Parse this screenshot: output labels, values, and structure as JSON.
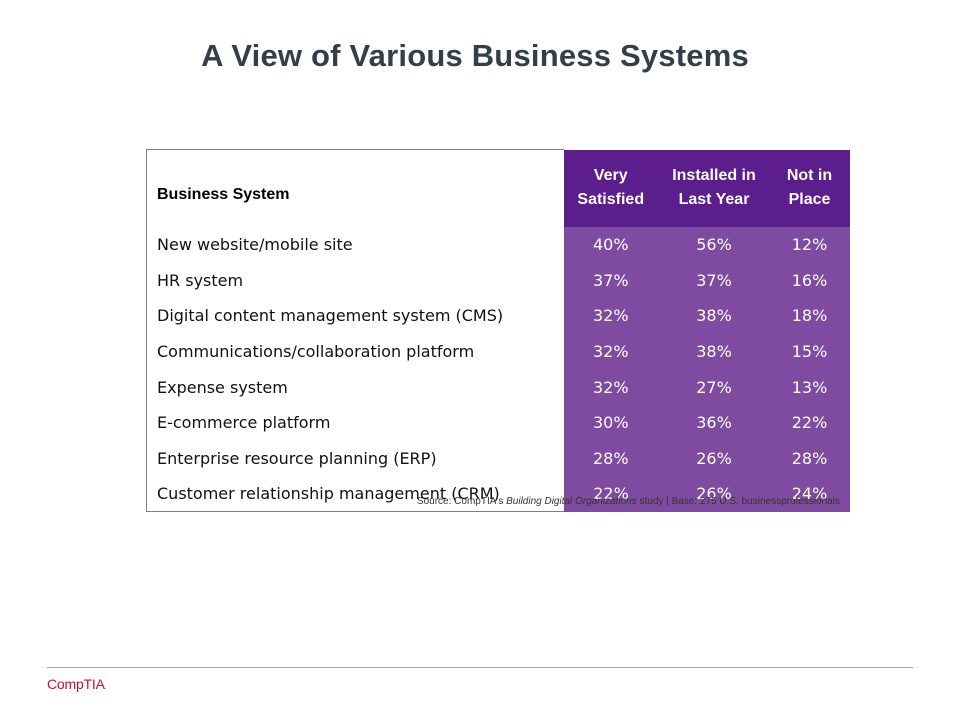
{
  "title": "A View of Various Business Systems",
  "table": {
    "headers": {
      "name": "Business System",
      "col1": "Very Satisfied",
      "col2": "Installed in Last Year",
      "col3": "Not in Place"
    },
    "rows": [
      {
        "name": "New website/mobile site",
        "v1": "40%",
        "v2": "56%",
        "v3": "12%"
      },
      {
        "name": "HR system",
        "v1": "37%",
        "v2": "37%",
        "v3": "16%"
      },
      {
        "name": "Digital content management system (CMS)",
        "v1": "32%",
        "v2": "38%",
        "v3": "18%"
      },
      {
        "name": "Communications/collaboration platform",
        "v1": "32%",
        "v2": "38%",
        "v3": "15%"
      },
      {
        "name": "Expense system",
        "v1": "32%",
        "v2": "27%",
        "v3": "13%"
      },
      {
        "name": "E-commerce platform",
        "v1": "30%",
        "v2": "36%",
        "v3": "22%"
      },
      {
        "name": "Enterprise resource planning (ERP)",
        "v1": "28%",
        "v2": "26%",
        "v3": "28%"
      },
      {
        "name": "Customer relationship management (CRM)",
        "v1": "22%",
        "v2": "26%",
        "v3": "24%"
      }
    ]
  },
  "source": {
    "prefix": "Source: CompTIA's ",
    "study": "Building Digital Organizations",
    "suffix": " study | Base: 275 U.S. businessprofessionals"
  },
  "logo": {
    "text": "CompTIA",
    "mark": ".",
    "color": "#c8102e"
  },
  "colors": {
    "header_purple": "#5c1e8c",
    "cell_purple": "#7f4ba0",
    "title": "#333f48"
  }
}
